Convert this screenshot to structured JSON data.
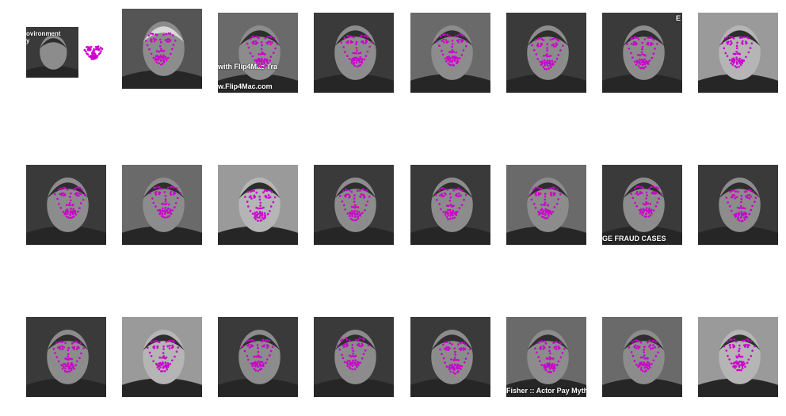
{
  "figure": {
    "landmark_color": "#cc00cc",
    "background": "#ffffff",
    "rows": 3,
    "cols": 8
  },
  "images": [
    {
      "id": 1,
      "row": 0,
      "col": 0,
      "tone": "dark",
      "overlays": [
        {
          "text": "ovironment",
          "pos": "top-left"
        },
        {
          "text": "y",
          "pos": "top-left2"
        }
      ],
      "landmarks_outside": true
    },
    {
      "id": 2,
      "row": 0,
      "col": 1,
      "tone": "light-hair",
      "overlays": []
    },
    {
      "id": 3,
      "row": 0,
      "col": 2,
      "tone": "mid",
      "overlays": [
        {
          "text": "with Flip4Mac Tra",
          "pos": "mid"
        },
        {
          "text": "w.Flip4Mac.com",
          "pos": "bottom"
        }
      ]
    },
    {
      "id": 4,
      "row": 0,
      "col": 3,
      "tone": "dark",
      "overlays": []
    },
    {
      "id": 5,
      "row": 0,
      "col": 4,
      "tone": "mid",
      "overlays": []
    },
    {
      "id": 6,
      "row": 0,
      "col": 5,
      "tone": "dark",
      "overlays": []
    },
    {
      "id": 7,
      "row": 0,
      "col": 6,
      "tone": "dark",
      "overlays": [
        {
          "text": "E",
          "pos": "top-right"
        }
      ]
    },
    {
      "id": 8,
      "row": 0,
      "col": 7,
      "tone": "light",
      "overlays": []
    },
    {
      "id": 9,
      "row": 1,
      "col": 0,
      "tone": "dark",
      "overlays": []
    },
    {
      "id": 10,
      "row": 1,
      "col": 1,
      "tone": "mid",
      "overlays": []
    },
    {
      "id": 11,
      "row": 1,
      "col": 2,
      "tone": "light",
      "overlays": []
    },
    {
      "id": 12,
      "row": 1,
      "col": 3,
      "tone": "dark",
      "overlays": []
    },
    {
      "id": 13,
      "row": 1,
      "col": 4,
      "tone": "dark",
      "overlays": []
    },
    {
      "id": 14,
      "row": 1,
      "col": 5,
      "tone": "mid",
      "overlays": []
    },
    {
      "id": 15,
      "row": 1,
      "col": 6,
      "tone": "dark",
      "overlays": [
        {
          "text": "GE FRAUD CASES",
          "pos": "bottom"
        }
      ]
    },
    {
      "id": 16,
      "row": 1,
      "col": 7,
      "tone": "dark",
      "overlays": []
    },
    {
      "id": 17,
      "row": 2,
      "col": 0,
      "tone": "dark",
      "overlays": []
    },
    {
      "id": 18,
      "row": 2,
      "col": 1,
      "tone": "light",
      "overlays": []
    },
    {
      "id": 19,
      "row": 2,
      "col": 2,
      "tone": "dark",
      "overlays": []
    },
    {
      "id": 20,
      "row": 2,
      "col": 3,
      "tone": "dark",
      "overlays": []
    },
    {
      "id": 21,
      "row": 2,
      "col": 4,
      "tone": "dark",
      "overlays": []
    },
    {
      "id": 22,
      "row": 2,
      "col": 5,
      "tone": "mid",
      "overlays": [
        {
          "text": "Fisher :: Actor Pay Myths",
          "pos": "bottom"
        }
      ]
    },
    {
      "id": 23,
      "row": 2,
      "col": 6,
      "tone": "mid",
      "overlays": []
    },
    {
      "id": 24,
      "row": 2,
      "col": 7,
      "tone": "light",
      "overlays": []
    }
  ]
}
